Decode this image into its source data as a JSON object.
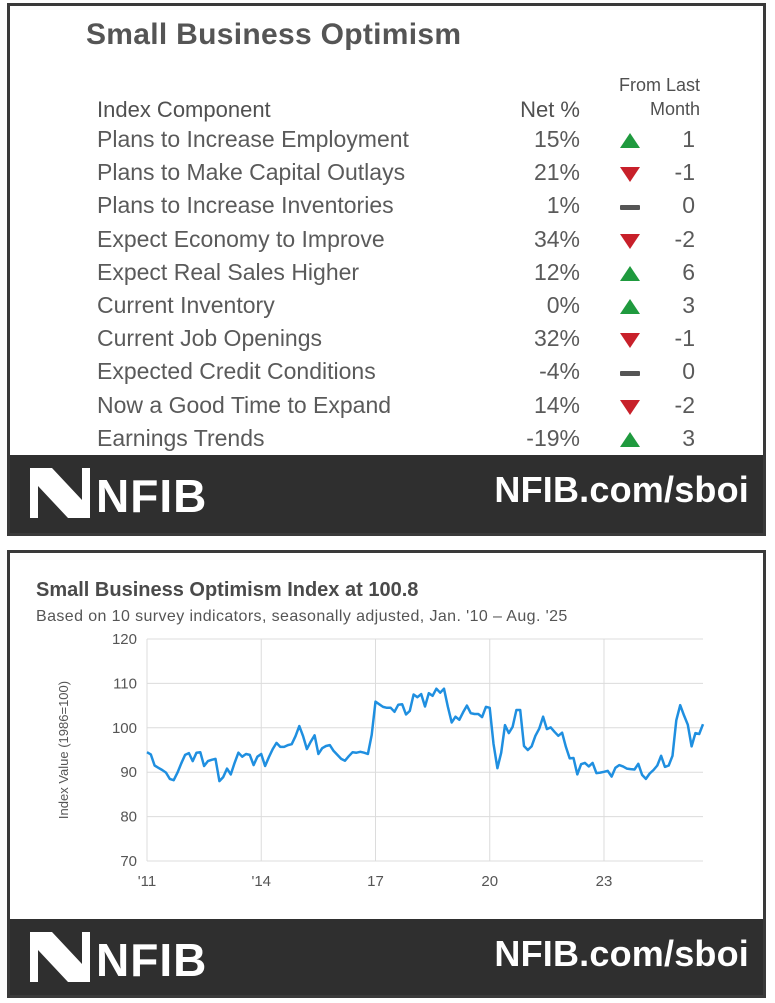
{
  "table": {
    "title": "Small Business Optimism",
    "headers": {
      "component": "Index Component",
      "net": "Net %",
      "change_line1": "From Last",
      "change_line2": "Month"
    },
    "rows": [
      {
        "label": "Plans to Increase Employment",
        "net": "15%",
        "trend": "up",
        "change": "1"
      },
      {
        "label": "Plans to Make Capital Outlays",
        "net": "21%",
        "trend": "down",
        "change": "-1"
      },
      {
        "label": "Plans to Increase Inventories",
        "net": "1%",
        "trend": "flat",
        "change": "0"
      },
      {
        "label": "Expect Economy to Improve",
        "net": "34%",
        "trend": "down",
        "change": "-2"
      },
      {
        "label": "Expect Real Sales Higher",
        "net": "12%",
        "trend": "up",
        "change": "6"
      },
      {
        "label": "Current Inventory",
        "net": "0%",
        "trend": "up",
        "change": "3"
      },
      {
        "label": "Current Job Openings",
        "net": "32%",
        "trend": "down",
        "change": "-1"
      },
      {
        "label": "Expected Credit Conditions",
        "net": "-4%",
        "trend": "flat",
        "change": "0"
      },
      {
        "label": "Now a Good Time to Expand",
        "net": "14%",
        "trend": "down",
        "change": "-2"
      },
      {
        "label": "Earnings Trends",
        "net": "-19%",
        "trend": "up",
        "change": "3"
      }
    ]
  },
  "colors": {
    "up": "#1f9a3e",
    "down": "#c8202a",
    "flat": "#555555",
    "line": "#1f8fe0",
    "footer": "#2f2f2f"
  },
  "footer": {
    "brand": "NFIB",
    "url": "NFIB.com/sboi"
  },
  "chart_data": {
    "type": "line",
    "title": "Small Business Optimism Index at 100.8",
    "subtitle": "Based on 10 survey indicators, seasonally adjusted,  Jan. '10 – Aug. '25",
    "ylabel": "Index Value (1986=100)",
    "xlabel": "",
    "ylim": [
      70,
      120
    ],
    "yticks": [
      70,
      80,
      90,
      100,
      110,
      120
    ],
    "xlim": [
      2011.0,
      2025.6
    ],
    "xticks": [
      {
        "value": 2011,
        "label": "'11"
      },
      {
        "value": 2014,
        "label": "'14"
      },
      {
        "value": 2017,
        "label": "17"
      },
      {
        "value": 2020,
        "label": "20"
      },
      {
        "value": 2023,
        "label": "23"
      }
    ],
    "grid": true,
    "series": [
      {
        "name": "Small Business Optimism Index",
        "points": [
          [
            2011.0,
            94.5
          ],
          [
            2011.1,
            94.0
          ],
          [
            2011.2,
            91.5
          ],
          [
            2011.3,
            91.0
          ],
          [
            2011.4,
            90.5
          ],
          [
            2011.5,
            89.9
          ],
          [
            2011.6,
            88.5
          ],
          [
            2011.7,
            88.2
          ],
          [
            2011.8,
            89.9
          ],
          [
            2011.9,
            92.0
          ],
          [
            2012.0,
            93.9
          ],
          [
            2012.1,
            94.3
          ],
          [
            2012.2,
            92.5
          ],
          [
            2012.3,
            94.4
          ],
          [
            2012.4,
            94.5
          ],
          [
            2012.5,
            91.4
          ],
          [
            2012.6,
            92.5
          ],
          [
            2012.7,
            92.8
          ],
          [
            2012.8,
            93.0
          ],
          [
            2012.9,
            88.0
          ],
          [
            2013.0,
            88.9
          ],
          [
            2013.1,
            90.8
          ],
          [
            2013.2,
            89.5
          ],
          [
            2013.3,
            92.1
          ],
          [
            2013.4,
            94.4
          ],
          [
            2013.5,
            93.5
          ],
          [
            2013.6,
            94.1
          ],
          [
            2013.7,
            93.9
          ],
          [
            2013.8,
            91.6
          ],
          [
            2013.9,
            93.5
          ],
          [
            2014.0,
            94.1
          ],
          [
            2014.1,
            91.4
          ],
          [
            2014.2,
            93.4
          ],
          [
            2014.3,
            95.2
          ],
          [
            2014.4,
            96.6
          ],
          [
            2014.5,
            95.7
          ],
          [
            2014.6,
            95.7
          ],
          [
            2014.7,
            96.1
          ],
          [
            2014.8,
            96.3
          ],
          [
            2014.9,
            98.1
          ],
          [
            2015.0,
            100.4
          ],
          [
            2015.1,
            98.1
          ],
          [
            2015.2,
            95.2
          ],
          [
            2015.3,
            96.9
          ],
          [
            2015.4,
            98.3
          ],
          [
            2015.5,
            94.1
          ],
          [
            2015.6,
            95.4
          ],
          [
            2015.7,
            95.9
          ],
          [
            2015.8,
            96.1
          ],
          [
            2015.9,
            94.8
          ],
          [
            2016.0,
            93.9
          ],
          [
            2016.1,
            93.0
          ],
          [
            2016.2,
            92.6
          ],
          [
            2016.3,
            93.6
          ],
          [
            2016.4,
            94.5
          ],
          [
            2016.5,
            94.4
          ],
          [
            2016.6,
            94.6
          ],
          [
            2016.7,
            94.4
          ],
          [
            2016.8,
            94.1
          ],
          [
            2016.9,
            98.4
          ],
          [
            2017.0,
            105.9
          ],
          [
            2017.1,
            105.3
          ],
          [
            2017.2,
            104.7
          ],
          [
            2017.3,
            104.5
          ],
          [
            2017.4,
            104.5
          ],
          [
            2017.5,
            103.6
          ],
          [
            2017.6,
            105.2
          ],
          [
            2017.7,
            105.3
          ],
          [
            2017.8,
            103.0
          ],
          [
            2017.9,
            103.8
          ],
          [
            2018.0,
            107.5
          ],
          [
            2018.1,
            106.9
          ],
          [
            2018.2,
            107.6
          ],
          [
            2018.3,
            104.8
          ],
          [
            2018.4,
            107.8
          ],
          [
            2018.5,
            107.2
          ],
          [
            2018.6,
            108.8
          ],
          [
            2018.7,
            107.9
          ],
          [
            2018.8,
            108.8
          ],
          [
            2018.9,
            104.8
          ],
          [
            2019.0,
            101.2
          ],
          [
            2019.1,
            102.5
          ],
          [
            2019.2,
            101.8
          ],
          [
            2019.3,
            103.5
          ],
          [
            2019.4,
            105.0
          ],
          [
            2019.5,
            103.3
          ],
          [
            2019.6,
            103.1
          ],
          [
            2019.7,
            103.1
          ],
          [
            2019.8,
            102.4
          ],
          [
            2019.9,
            104.7
          ],
          [
            2020.0,
            104.5
          ],
          [
            2020.1,
            96.4
          ],
          [
            2020.2,
            90.9
          ],
          [
            2020.3,
            94.4
          ],
          [
            2020.4,
            100.6
          ],
          [
            2020.5,
            98.8
          ],
          [
            2020.6,
            100.2
          ],
          [
            2020.7,
            104.0
          ],
          [
            2020.8,
            104.0
          ],
          [
            2020.9,
            95.9
          ],
          [
            2021.0,
            95.0
          ],
          [
            2021.1,
            95.8
          ],
          [
            2021.2,
            98.2
          ],
          [
            2021.3,
            99.8
          ],
          [
            2021.4,
            102.5
          ],
          [
            2021.5,
            99.7
          ],
          [
            2021.6,
            100.1
          ],
          [
            2021.7,
            99.1
          ],
          [
            2021.8,
            98.2
          ],
          [
            2021.9,
            98.9
          ],
          [
            2022.0,
            95.7
          ],
          [
            2022.1,
            93.1
          ],
          [
            2022.2,
            93.2
          ],
          [
            2022.3,
            89.5
          ],
          [
            2022.4,
            91.8
          ],
          [
            2022.5,
            92.1
          ],
          [
            2022.6,
            91.3
          ],
          [
            2022.7,
            92.1
          ],
          [
            2022.8,
            89.8
          ],
          [
            2022.9,
            89.9
          ],
          [
            2023.0,
            90.1
          ],
          [
            2023.1,
            90.3
          ],
          [
            2023.2,
            89.0
          ],
          [
            2023.3,
            91.0
          ],
          [
            2023.4,
            91.6
          ],
          [
            2023.5,
            91.3
          ],
          [
            2023.6,
            90.8
          ],
          [
            2023.7,
            90.7
          ],
          [
            2023.8,
            90.6
          ],
          [
            2023.9,
            91.9
          ],
          [
            2024.0,
            89.4
          ],
          [
            2024.1,
            88.5
          ],
          [
            2024.2,
            89.7
          ],
          [
            2024.3,
            90.5
          ],
          [
            2024.4,
            91.5
          ],
          [
            2024.5,
            93.7
          ],
          [
            2024.6,
            91.2
          ],
          [
            2024.7,
            91.5
          ],
          [
            2024.8,
            93.7
          ],
          [
            2024.9,
            101.7
          ],
          [
            2025.0,
            105.1
          ],
          [
            2025.1,
            102.8
          ],
          [
            2025.2,
            100.7
          ],
          [
            2025.3,
            95.8
          ],
          [
            2025.4,
            98.8
          ],
          [
            2025.5,
            98.6
          ],
          [
            2025.6,
            100.8
          ]
        ]
      }
    ]
  }
}
